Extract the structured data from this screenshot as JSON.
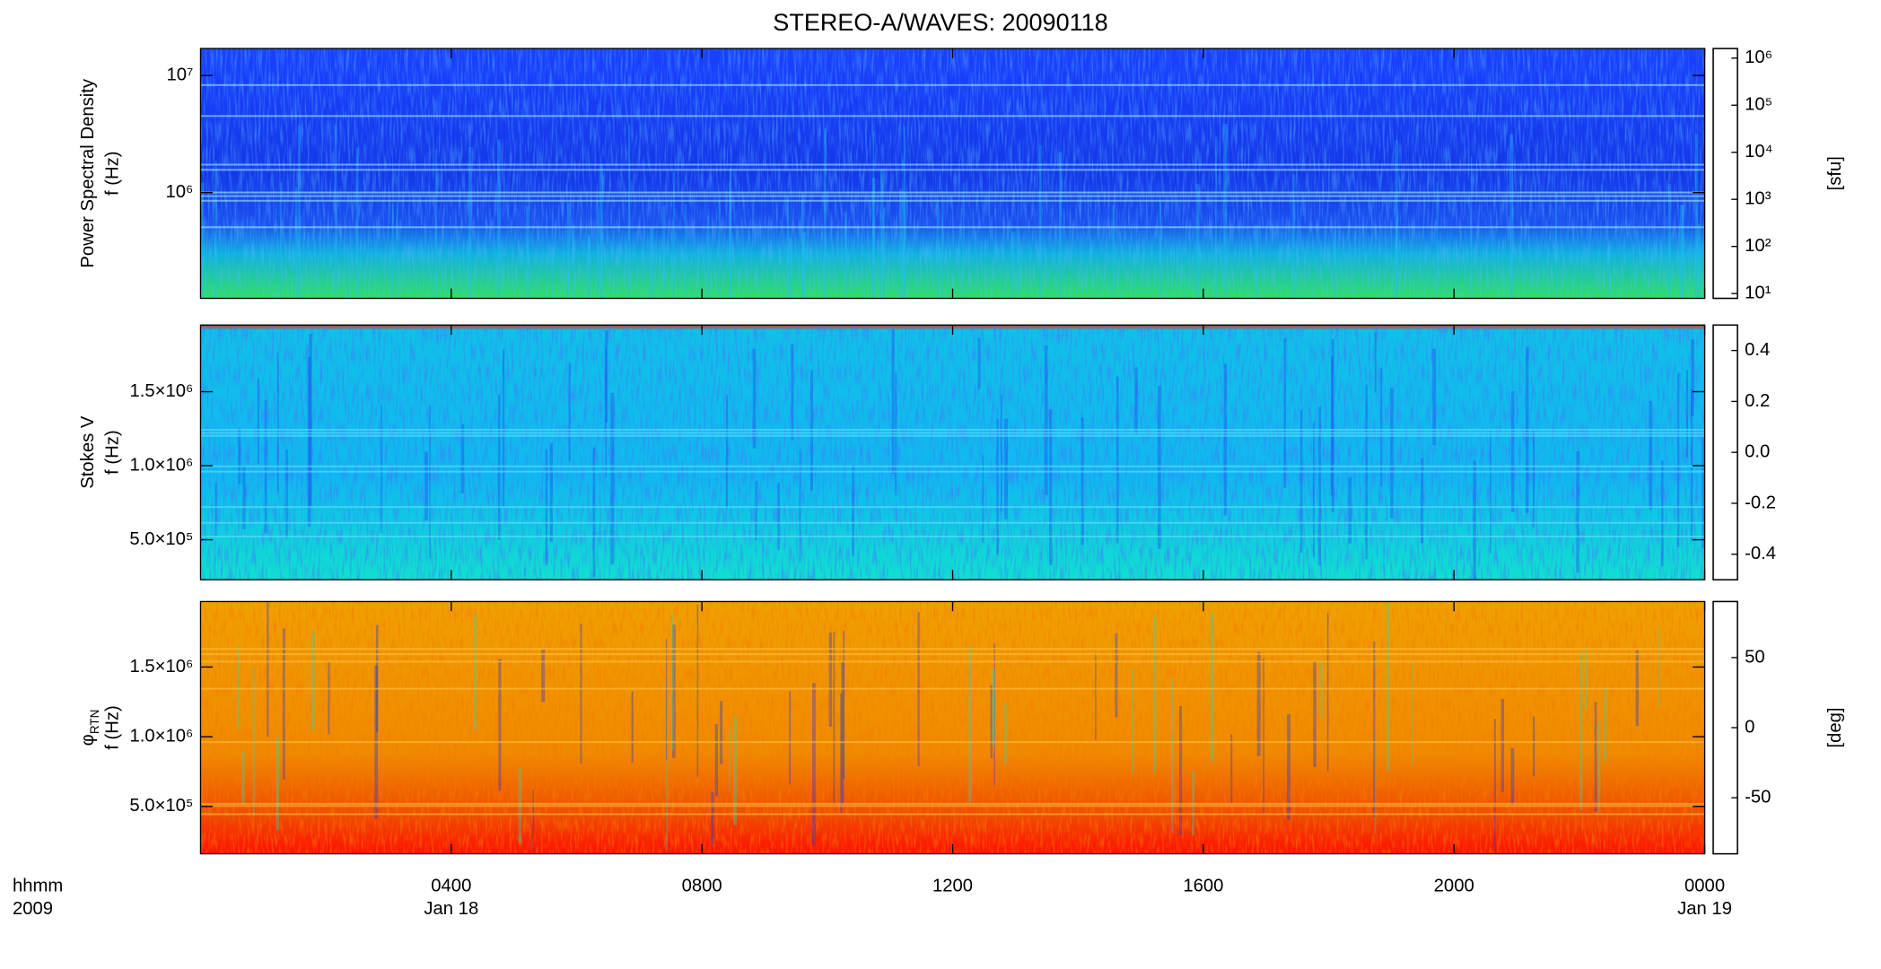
{
  "chart_data": {
    "type": "spectrogram",
    "title": "STEREO-A/WAVES: 20090118",
    "xlim": [
      0,
      24
    ],
    "xticks": [
      {
        "value": 4,
        "label": "0400"
      },
      {
        "value": 8,
        "label": "0800"
      },
      {
        "value": 12,
        "label": "1200"
      },
      {
        "value": 16,
        "label": "1600"
      },
      {
        "value": 20,
        "label": "2000"
      },
      {
        "value": 24,
        "label": "0000"
      }
    ],
    "x_date_labels": [
      {
        "value": 4,
        "label": "Jan 18"
      },
      {
        "value": 24,
        "label": "Jan 19"
      }
    ],
    "x_unit_label": "hhmm",
    "x_year_label": "2009",
    "panels": [
      {
        "ylabel": "Power Spectral Density",
        "ylabel2": "f (Hz)",
        "ylog": true,
        "ylim": [
          125000,
          17000000
        ],
        "yticks": [
          {
            "value": 1000000,
            "label": "10⁶"
          },
          {
            "value": 10000000,
            "label": "10⁷"
          }
        ],
        "clog": true,
        "clim": [
          7.9,
          1600000
        ],
        "cticks": [
          {
            "value": 10,
            "label": "10¹"
          },
          {
            "value": 100,
            "label": "10²"
          },
          {
            "value": 1000,
            "label": "10³"
          },
          {
            "value": 10000,
            "label": "10⁴"
          },
          {
            "value": 100000,
            "label": "10⁵"
          },
          {
            "value": 1000000,
            "label": "10⁶"
          }
        ],
        "clabel": "[sfu]"
      },
      {
        "ylabel": "Stokes V",
        "ylabel2": "f (Hz)",
        "ylog": false,
        "ylim": [
          230000,
          1950000
        ],
        "yticks": [
          {
            "value": 500000,
            "label": "5.0×10⁵"
          },
          {
            "value": 1000000,
            "label": "1.0×10⁶"
          },
          {
            "value": 1500000,
            "label": "1.5×10⁶"
          }
        ],
        "clog": false,
        "clim": [
          -0.5,
          0.5
        ],
        "cticks": [
          -0.4,
          -0.2,
          {
            "value": 0,
            "label": "0.0"
          },
          0.2,
          0.4
        ]
      },
      {
        "ylabel": "φ",
        "ylabel_sub": "RTN",
        "ylabel2": "f (Hz)",
        "ylog": false,
        "ylim": [
          160000,
          1970000
        ],
        "yticks": [
          {
            "value": 500000,
            "label": "5.0×10⁵"
          },
          {
            "value": 1000000,
            "label": "1.0×10⁶"
          },
          {
            "value": 1500000,
            "label": "1.5×10⁶"
          }
        ],
        "clog": false,
        "clim": [
          -90,
          90
        ],
        "cticks": [
          -50,
          0,
          50
        ],
        "clabel": "[deg]"
      }
    ]
  }
}
